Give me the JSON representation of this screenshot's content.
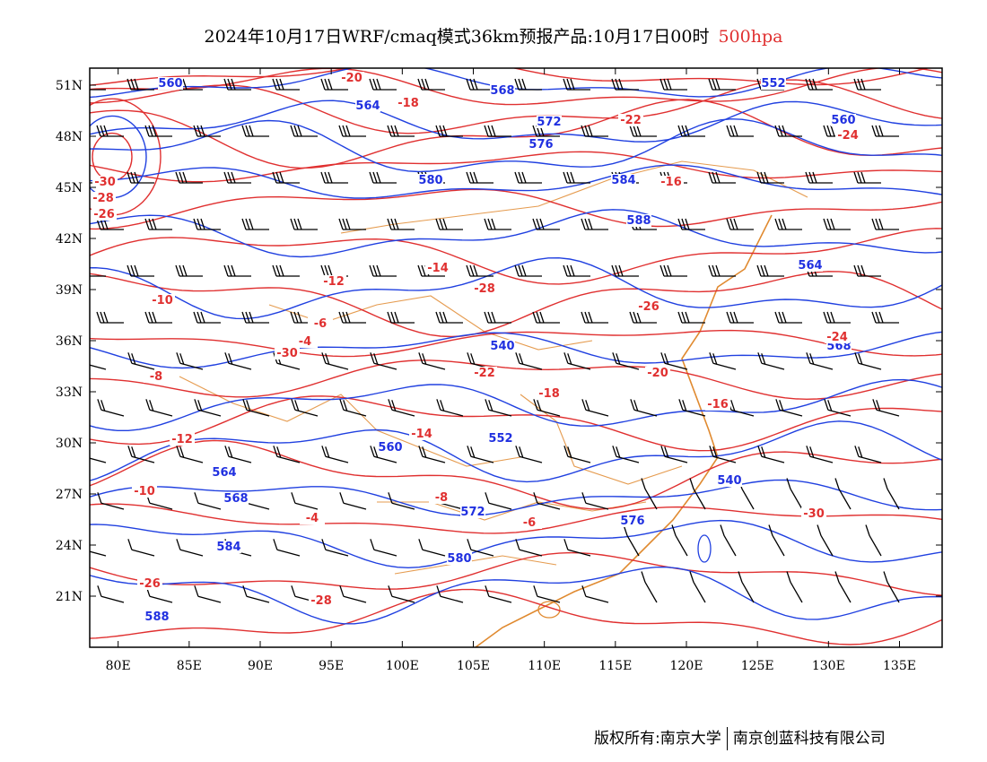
{
  "title": {
    "main": "2024年10月17日WRF/cmaq模式36km预报产品:10月17日00时",
    "level": "500hpa"
  },
  "map": {
    "lon_range": [
      78,
      138
    ],
    "lat_range": [
      18,
      52
    ],
    "lon_ticks": [
      "80E",
      "85E",
      "90E",
      "95E",
      "100E",
      "105E",
      "110E",
      "115E",
      "120E",
      "125E",
      "130E",
      "135E"
    ],
    "lat_ticks": [
      "51N",
      "48N",
      "45N",
      "42N",
      "39N",
      "36N",
      "33N",
      "30N",
      "27N",
      "24N",
      "21N"
    ],
    "colors": {
      "height_contour": "#2040e0",
      "temperature_contour": "#e03030",
      "coastline_border": "#e08a30",
      "wind_barb": "#000000"
    },
    "height_labels": [
      "560",
      "564",
      "568",
      "572",
      "576",
      "580",
      "584",
      "588",
      "540",
      "552"
    ],
    "temperature_labels": [
      "-30",
      "-28",
      "-26",
      "-24",
      "-22",
      "-20",
      "-18",
      "-16",
      "-14",
      "-12",
      "-10",
      "-8",
      "-6",
      "-4"
    ]
  },
  "footer": {
    "left": "版权所有:南京大学",
    "right": "南京创蓝科技有限公司"
  }
}
